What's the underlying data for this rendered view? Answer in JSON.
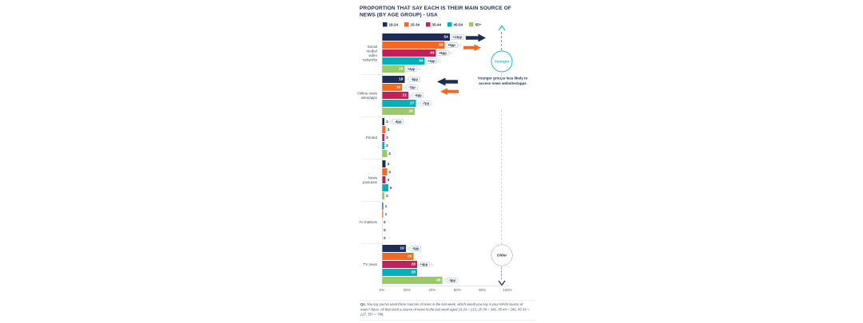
{
  "title": "PROPORTION THAT SAY EACH IS THEIR MAIN SOURCE OF NEWS (BY AGE GROUP) - USA",
  "colors": {
    "navy": "#1e2c58",
    "orange": "#f26a22",
    "magenta": "#c2205c",
    "teal": "#00b1ba",
    "green": "#9bc968",
    "badge_border": "#a9bdd2",
    "younger_accent": "#2ab5c0"
  },
  "chart_data": {
    "type": "bar",
    "orientation": "horizontal",
    "title": "PROPORTION THAT SAY EACH IS THEIR MAIN SOURCE OF NEWS (BY AGE GROUP) - USA",
    "unit": "%",
    "xlim": [
      0,
      100
    ],
    "x_ticks": [
      "0%",
      "20%",
      "40%",
      "60%",
      "80%",
      "100%"
    ],
    "grid": "off",
    "legend_position": "top",
    "series": [
      "18-24",
      "25-34",
      "35-44",
      "45-54",
      "55+"
    ],
    "series_colors": [
      "#1e2c58",
      "#f26a22",
      "#c2205c",
      "#00b1ba",
      "#9bc968"
    ],
    "groups": [
      {
        "category": "Social media/ video networks",
        "category_lines": "Social\nmedia/\nvideo\nnetworks",
        "values": [
          54,
          50,
          43,
          34,
          18
        ],
        "changes": [
          {
            "label": "+13pp",
            "dir": "up"
          },
          {
            "label": "+6pp",
            "dir": "up"
          },
          {
            "label": "+6pp",
            "dir": "up"
          },
          {
            "label": "+3pp",
            "dir": "up"
          },
          {
            "label": "+4pp",
            "dir": "up"
          }
        ]
      },
      {
        "category": "Online news sites/apps",
        "category_lines": "Online news\nsites/apps",
        "values": [
          18,
          16,
          21,
          27,
          26
        ],
        "changes": [
          {
            "label": "-6pp",
            "dir": "down"
          },
          {
            "label": "-7pp",
            "dir": "down"
          },
          {
            "label": "-9pp",
            "dir": "down"
          },
          {
            "label": "-7pp",
            "dir": "down"
          },
          null
        ]
      },
      {
        "category": "Printed",
        "category_lines": "Printed",
        "values": [
          2,
          3,
          2,
          2,
          4
        ],
        "changes": [
          {
            "label": "-4pp",
            "dir": "down"
          },
          null,
          null,
          null,
          null
        ]
      },
      {
        "category": "News podcasts",
        "category_lines": "News\npodcasts",
        "values": [
          3,
          4,
          3,
          5,
          2
        ],
        "changes": [
          null,
          null,
          null,
          null,
          null
        ]
      },
      {
        "category": "AI chatbots",
        "category_lines": "AI chatbots",
        "values": [
          1,
          1,
          0,
          0,
          0
        ],
        "changes": [
          null,
          null,
          null,
          null,
          null
        ]
      },
      {
        "category": "TV news",
        "category_lines": "TV news",
        "values": [
          19,
          25,
          28,
          28,
          48
        ],
        "changes": [
          {
            "label": "-5pp",
            "dir": "down"
          },
          null,
          {
            "label": "+4pp",
            "dir": "up"
          },
          null,
          {
            "label": "-3pp",
            "dir": "down"
          }
        ]
      }
    ]
  },
  "annotations": {
    "younger_note": "Younger groups less likely to access news websites/apps",
    "younger_circle": "Younger",
    "older_circle": "Older"
  },
  "footnote": {
    "prefix": "Q4.",
    "text": "You say you've used these sources of news in the last week, which would you say is your MAIN source of news? Base: All that used a source of news in the last week aged 18-24 = 213, 25-34 = 346, 35-44 = 296, 45-54 = 227, 55+ = 788."
  }
}
